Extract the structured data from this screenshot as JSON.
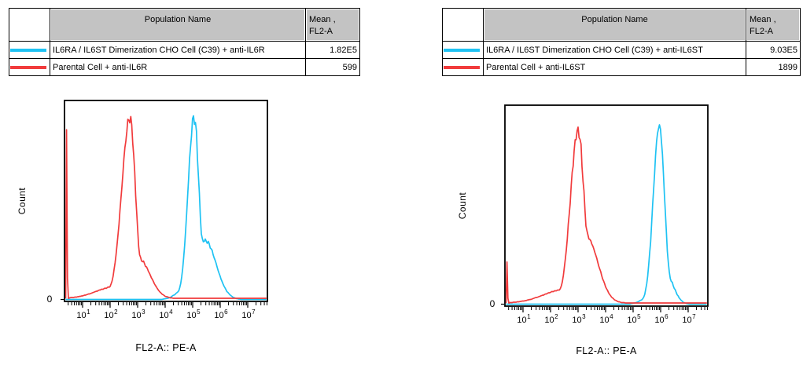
{
  "colors": {
    "cyan": "#1EC2F3",
    "red": "#F13B3C",
    "table_header_bg": "#C3C3C3",
    "axis": "#000000",
    "background": "#FFFFFF"
  },
  "tables": [
    {
      "panel": "left",
      "header": {
        "population": "Population Name",
        "mean_line1": "Mean ,",
        "mean_line2": "FL2-A"
      },
      "rows": [
        {
          "color_key": "cyan",
          "name": "IL6RA / IL6ST Dimerization CHO Cell (C39) + anti-IL6R",
          "mean": "1.82E5"
        },
        {
          "color_key": "red",
          "name": "Parental Cell + anti-IL6R",
          "mean": "599"
        }
      ]
    },
    {
      "panel": "right",
      "header": {
        "population": "Population Name",
        "mean_line1": "Mean ,",
        "mean_line2": "FL2-A"
      },
      "rows": [
        {
          "color_key": "cyan",
          "name": "IL6RA / IL6ST Dimerization CHO Cell (C39) + anti-IL6ST",
          "mean": "9.03E5"
        },
        {
          "color_key": "red",
          "name": "Parental Cell + anti-IL6ST",
          "mean": "1899"
        }
      ]
    }
  ],
  "chart_data": [
    {
      "type": "line",
      "panel": "left",
      "title": "",
      "xlabel": "FL2-A:: PE-A",
      "ylabel": "Count",
      "y_zero_label": "0",
      "x_scale": "log10",
      "x_ticks_exponents": [
        1,
        2,
        3,
        4,
        5,
        6,
        7
      ],
      "x_range_log10": [
        0.34,
        7.71
      ],
      "grid": false,
      "legend": "in table above",
      "series": [
        {
          "name": "IL6RA / IL6ST Dimerization CHO Cell (C39) + anti-IL6R",
          "color_key": "cyan",
          "mean_fl2a": "1.82E5",
          "mode_log10": 5.05,
          "peak_height_frac": 0.93,
          "edge_spike_frac": 0,
          "components": [
            {
              "m": 5.05,
              "sl": 0.22,
              "sr": 0.18,
              "h": 0.93
            },
            {
              "m": 5.45,
              "s": 0.4,
              "h": 0.3
            },
            {
              "m": 4.85,
              "s": 0.35,
              "h": 0.07
            }
          ]
        },
        {
          "name": "Parental Cell + anti-IL6R",
          "color_key": "red",
          "mean_fl2a": "599",
          "mode_log10": 2.72,
          "peak_height_frac": 0.92,
          "edge_spike_frac": 0.86,
          "components": [
            {
              "m": 2.72,
              "sl": 0.3,
              "sr": 0.2,
              "h": 0.92
            },
            {
              "m": 3.05,
              "s": 0.4,
              "h": 0.2
            },
            {
              "m": 2.2,
              "s": 0.7,
              "h": 0.06
            }
          ]
        }
      ]
    },
    {
      "type": "line",
      "panel": "right",
      "title": "",
      "xlabel": "FL2-A:: PE-A",
      "ylabel": "Count",
      "y_zero_label": "0",
      "x_scale": "log10",
      "x_ticks_exponents": [
        1,
        2,
        3,
        4,
        5,
        6,
        7
      ],
      "x_range_log10": [
        0.34,
        7.71
      ],
      "grid": false,
      "legend": "in table above",
      "series": [
        {
          "name": "IL6RA / IL6ST Dimerization CHO Cell (C39) + anti-IL6ST",
          "color_key": "cyan",
          "mean_fl2a": "9.03E5",
          "mode_log10": 5.95,
          "peak_height_frac": 0.91,
          "edge_spike_frac": 0,
          "components": [
            {
              "m": 5.95,
              "sl": 0.22,
              "sr": 0.19,
              "h": 0.91
            },
            {
              "m": 6.2,
              "s": 0.27,
              "h": 0.15
            },
            {
              "m": 5.8,
              "s": 0.35,
              "h": 0.06
            }
          ]
        },
        {
          "name": "Parental Cell + anti-IL6ST",
          "color_key": "red",
          "mean_fl2a": "1899",
          "mode_log10": 3.0,
          "peak_height_frac": 0.88,
          "edge_spike_frac": 0.21,
          "components": [
            {
              "m": 3.0,
              "sl": 0.28,
              "sr": 0.22,
              "h": 0.88
            },
            {
              "m": 3.3,
              "s": 0.42,
              "h": 0.34
            },
            {
              "m": 2.55,
              "s": 0.8,
              "h": 0.07
            }
          ]
        }
      ]
    }
  ]
}
